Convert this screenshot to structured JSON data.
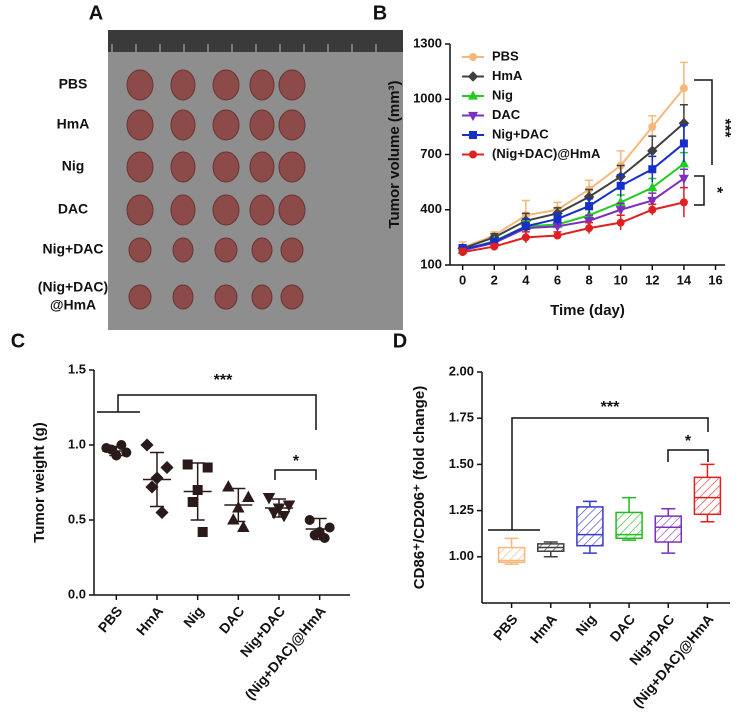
{
  "photo": {
    "label": "A",
    "rows": [
      [
        "PBS"
      ],
      [
        "HmA"
      ],
      [
        "Nig"
      ],
      [
        "DAC"
      ],
      [
        "Nig+DAC"
      ],
      [
        "(Nig+DAC)",
        "@HmA"
      ]
    ]
  },
  "chart_data": [
    {
      "type": "line",
      "panel": "B",
      "x": [
        0,
        2,
        4,
        6,
        8,
        10,
        12,
        14
      ],
      "xlim": [
        -0.8,
        16.6
      ],
      "xticks": [
        0,
        2,
        4,
        6,
        8,
        10,
        12,
        14,
        16
      ],
      "ylim": [
        100,
        1300
      ],
      "yticks": [
        100,
        400,
        700,
        1000,
        1300
      ],
      "xlabel": "Time (day)",
      "ylabel": "Tumor volume (mm³)",
      "legend": "upper left",
      "series": [
        {
          "name": "PBS",
          "color": "#f5b87a",
          "marker": "circle",
          "values": [
            195,
            260,
            370,
            400,
            510,
            640,
            850,
            1060
          ],
          "errors": [
            30,
            20,
            80,
            40,
            50,
            80,
            60,
            140
          ]
        },
        {
          "name": "HmA",
          "color": "#404040",
          "marker": "diamond",
          "values": [
            190,
            250,
            340,
            380,
            470,
            580,
            720,
            870
          ],
          "errors": [
            20,
            20,
            40,
            30,
            40,
            60,
            80,
            100
          ]
        },
        {
          "name": "Nig",
          "color": "#22cc22",
          "marker": "triangle-up",
          "values": [
            180,
            230,
            310,
            320,
            370,
            440,
            520,
            650
          ],
          "errors": [
            20,
            15,
            30,
            25,
            30,
            40,
            50,
            60
          ]
        },
        {
          "name": "DAC",
          "color": "#7b2fbf",
          "marker": "triangle-down",
          "values": [
            180,
            220,
            300,
            310,
            340,
            400,
            450,
            570
          ],
          "errors": [
            20,
            15,
            25,
            25,
            30,
            35,
            40,
            50
          ]
        },
        {
          "name": "Nig+DAC",
          "color": "#1530c8",
          "marker": "square",
          "values": [
            185,
            225,
            310,
            350,
            420,
            530,
            620,
            760
          ],
          "errors": [
            25,
            20,
            40,
            30,
            40,
            60,
            70,
            100
          ]
        },
        {
          "name": "(Nig+DAC)@HmA",
          "color": "#e02020",
          "marker": "circle",
          "values": [
            170,
            200,
            250,
            260,
            300,
            330,
            400,
            440
          ],
          "errors": [
            20,
            15,
            30,
            20,
            30,
            40,
            30,
            80
          ]
        }
      ],
      "annotations": [
        "***",
        "*"
      ]
    },
    {
      "type": "dot",
      "panel": "C",
      "categories": [
        "PBS",
        "HmA",
        "Nig",
        "DAC",
        "Nig+DAC",
        "(Nig+DAC)@HmA"
      ],
      "ylim": [
        0,
        1.5
      ],
      "yticks": [
        {
          "value": 0,
          "label": "0.0"
        },
        0.5,
        {
          "value": 1,
          "label": "1.0"
        },
        1.5
      ],
      "ylabel": "Tumor weight (g)",
      "color": "#2a1a1a",
      "markers": [
        "circle",
        "diamond",
        "square",
        "triangle-up",
        "triangle-down",
        "circle"
      ],
      "points": [
        [
          0.98,
          0.95,
          0.93,
          0.97,
          1.0
        ],
        [
          1.0,
          0.85,
          0.78,
          0.72,
          0.55
        ],
        [
          0.87,
          0.85,
          0.7,
          0.62,
          0.42
        ],
        [
          0.72,
          0.65,
          0.58,
          0.5,
          0.45
        ],
        [
          0.65,
          0.6,
          0.58,
          0.55,
          0.53
        ],
        [
          0.5,
          0.45,
          0.42,
          0.4,
          0.38
        ]
      ],
      "mean": [
        0.96,
        0.77,
        0.69,
        0.6,
        0.58,
        0.44
      ],
      "sd": [
        0.03,
        0.18,
        0.19,
        0.11,
        0.06,
        0.07
      ],
      "annotations": [
        "***",
        "*"
      ]
    },
    {
      "type": "box",
      "panel": "D",
      "categories": [
        "PBS",
        "HmA",
        "Nig",
        "DAC",
        "Nig+DAC",
        "(Nig+DAC)@HmA"
      ],
      "ylim": [
        0.75,
        2
      ],
      "yticks": [
        {
          "value": 1,
          "label": "1.00"
        },
        {
          "value": 1.25,
          "label": "1.25"
        },
        {
          "value": 1.5,
          "label": "1.50"
        },
        {
          "value": 1.75,
          "label": "1.75"
        },
        {
          "value": 2,
          "label": "2.00"
        }
      ],
      "ylabel": "CD86⁺/CD206⁺ (fold change)",
      "colors": [
        "#f5b87a",
        "#404040",
        "#3a3acf",
        "#22bb22",
        "#7b2fbf",
        "#e02020"
      ],
      "boxes": [
        {
          "min": 0.96,
          "q1": 0.97,
          "median": 0.98,
          "q3": 1.05,
          "max": 1.1
        },
        {
          "min": 1.0,
          "q1": 1.03,
          "median": 1.05,
          "q3": 1.07,
          "max": 1.08
        },
        {
          "min": 1.02,
          "q1": 1.06,
          "median": 1.12,
          "q3": 1.27,
          "max": 1.3
        },
        {
          "min": 1.09,
          "q1": 1.1,
          "median": 1.12,
          "q3": 1.24,
          "max": 1.32
        },
        {
          "min": 1.02,
          "q1": 1.08,
          "median": 1.16,
          "q3": 1.22,
          "max": 1.26
        },
        {
          "min": 1.19,
          "q1": 1.23,
          "median": 1.32,
          "q3": 1.43,
          "max": 1.5
        }
      ],
      "annotations": [
        "***",
        "*"
      ]
    }
  ]
}
